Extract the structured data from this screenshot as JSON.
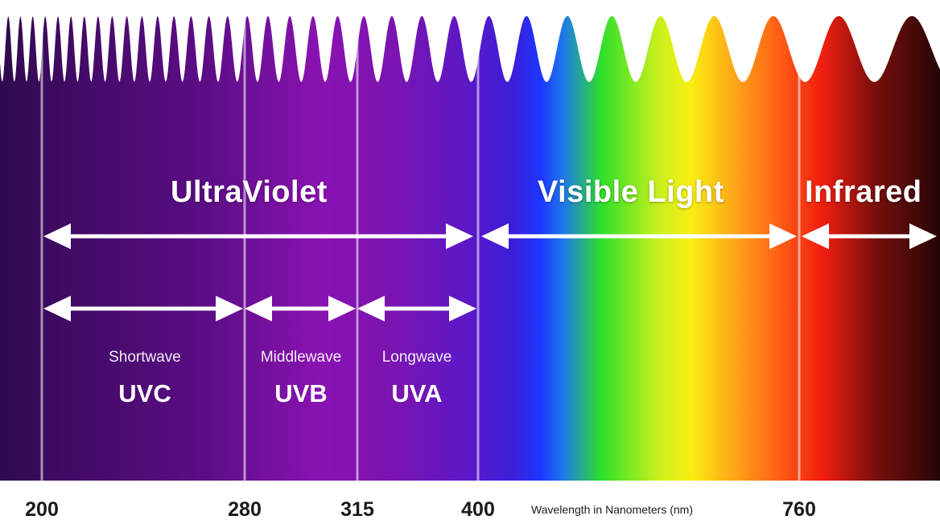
{
  "regions": {
    "ultraviolet": "UltraViolet",
    "visible": "Visible Light",
    "infrared": "Infrared"
  },
  "uv_bands": [
    {
      "descriptor": "Shortwave",
      "code": "UVC",
      "from_nm": 200,
      "to_nm": 280
    },
    {
      "descriptor": "Middlewave",
      "code": "UVB",
      "from_nm": 280,
      "to_nm": 315
    },
    {
      "descriptor": "Longwave",
      "code": "UVA",
      "from_nm": 315,
      "to_nm": 400
    }
  ],
  "boundaries_nm": [
    "200",
    "280",
    "315",
    "400",
    "760"
  ],
  "axis_title": "Wavelength in Nanometers (nm)",
  "colors": {
    "uv_dark": "#3a0a5c",
    "uv_mid": "#7a10a8",
    "violet": "#4a1fd0",
    "blue": "#1a3cff",
    "green": "#2ee02a",
    "yellow": "#f5f51a",
    "orange": "#ff8a1a",
    "red": "#ff2a10",
    "ir_dark": "#2a0808",
    "axis_text": "#1a1a1a"
  }
}
